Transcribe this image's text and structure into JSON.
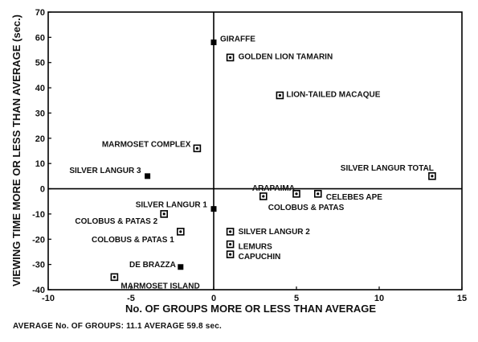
{
  "chart_data": {
    "type": "scatter",
    "xlabel": "No. OF GROUPS MORE OR LESS THAN AVERAGE",
    "ylabel": "VIEWING TIME MORE OR LESS THAN AVERAGE (sec.)",
    "xlim": [
      -10,
      15
    ],
    "ylim": [
      -40,
      70
    ],
    "xticks": [
      -10,
      -5,
      0,
      5,
      10,
      15
    ],
    "yticks": [
      70,
      60,
      50,
      40,
      30,
      20,
      10,
      0,
      -10,
      -20,
      -30,
      -40
    ],
    "xtick_labels": [
      "-10",
      "-5",
      "0",
      "5",
      "10",
      "15"
    ],
    "ytick_labels": [
      "70",
      "60",
      "50",
      "40",
      "30",
      "20",
      "10",
      "0",
      "-10",
      "-20",
      "-30",
      "-40"
    ],
    "grid": false,
    "points": [
      {
        "label": "GIRAFFE",
        "x": 0,
        "y": 58,
        "marker": "solid"
      },
      {
        "label": "GOLDEN LION TAMARIN",
        "x": 1,
        "y": 52,
        "marker": "open"
      },
      {
        "label": "LION-TAILED MACAQUE",
        "x": 4,
        "y": 37,
        "marker": "open"
      },
      {
        "label": "MARMOSET COMPLEX",
        "x": -1,
        "y": 16,
        "marker": "open"
      },
      {
        "label": "SILVER LANGUR 3",
        "x": -4,
        "y": 5,
        "marker": "solid"
      },
      {
        "label": "SILVER LANGUR TOTAL",
        "x": 13.2,
        "y": 5,
        "marker": "open"
      },
      {
        "label": "ARAPAIMA",
        "x": 5,
        "y": -2,
        "marker": "open"
      },
      {
        "label": "CELEBES APE",
        "x": 6.3,
        "y": -2,
        "marker": "open"
      },
      {
        "label": "COLOBUS & PATAS",
        "x": 3,
        "y": -3,
        "marker": "open"
      },
      {
        "label": "SILVER LANGUR 1",
        "x": 0,
        "y": -8,
        "marker": "solid"
      },
      {
        "label": "COLOBUS & PATAS 2",
        "x": -3,
        "y": -10,
        "marker": "open"
      },
      {
        "label": "COLOBUS & PATAS 1",
        "x": -2,
        "y": -17,
        "marker": "open"
      },
      {
        "label": "SILVER LANGUR 2",
        "x": 1,
        "y": -17,
        "marker": "open"
      },
      {
        "label": "LEMURS",
        "x": 1,
        "y": -22,
        "marker": "open"
      },
      {
        "label": "CAPUCHIN",
        "x": 1,
        "y": -26,
        "marker": "open"
      },
      {
        "label": "DE BRAZZA",
        "x": -2,
        "y": -31,
        "marker": "solid"
      },
      {
        "label": "MARMOSET ISLAND",
        "x": -6,
        "y": -35,
        "marker": "open"
      }
    ]
  },
  "caption": "AVERAGE No. OF GROUPS: 11.1  AVERAGE 59.8 sec."
}
